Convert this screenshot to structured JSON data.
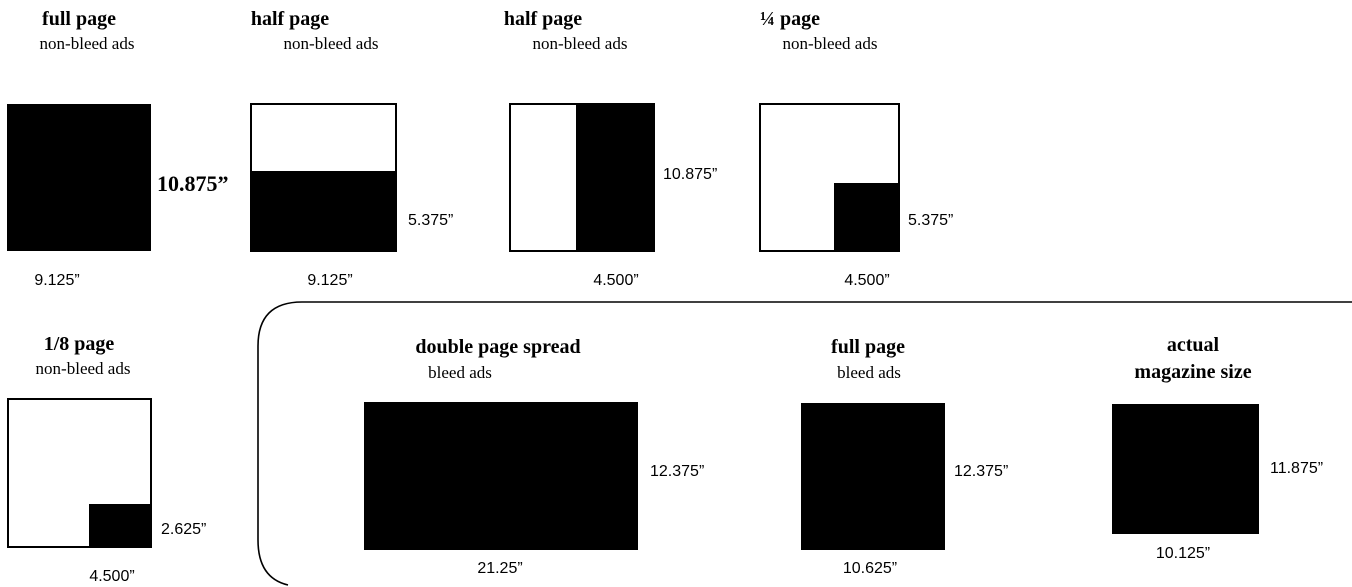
{
  "non_bleed_ads": [
    {
      "title": "full page",
      "subtitle": "non-bleed ads",
      "width": "9.125”",
      "height": "10.875”"
    },
    {
      "title": "half page",
      "subtitle": "non-bleed ads",
      "width": "9.125”",
      "height": "5.375”"
    },
    {
      "title": "half page",
      "subtitle": "non-bleed ads",
      "width": "4.500”",
      "height": "10.875”"
    },
    {
      "title": "¼ page",
      "subtitle": "non-bleed ads",
      "width": "4.500”",
      "height": "5.375”"
    },
    {
      "title": "1/8 page",
      "subtitle": "non-bleed ads",
      "width": "4.500”",
      "height": "2.625”"
    }
  ],
  "bleed_ads": [
    {
      "title": "double page spread",
      "subtitle": "bleed ads",
      "width": "21.25”",
      "height": "12.375”"
    },
    {
      "title": "full page",
      "subtitle": "bleed ads",
      "width": "10.625”",
      "height": "12.375”"
    }
  ],
  "magazine": {
    "title_line1": "actual",
    "title_line2": "magazine size",
    "width": "10.125”",
    "height": "11.875”"
  },
  "colors": {
    "ad_fill": "#000000",
    "page_outline": "#000000",
    "background": "#ffffff"
  }
}
